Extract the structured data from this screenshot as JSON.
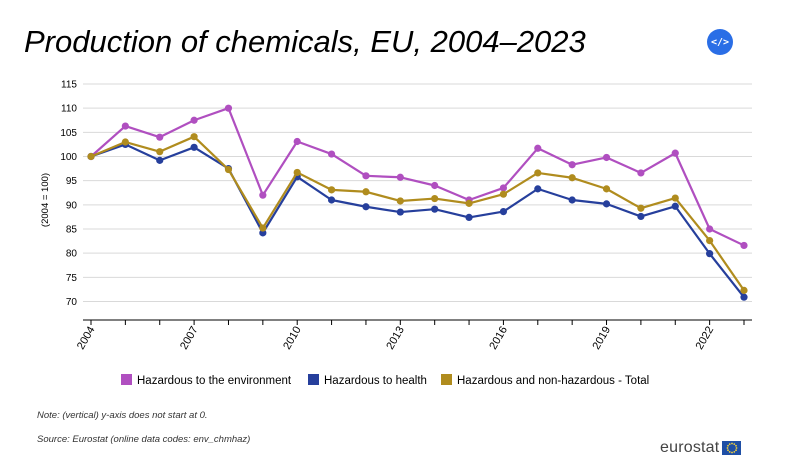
{
  "title": "Production of chemicals, EU, 2004–2023",
  "embed_button_label": "</>",
  "note": "Note: (vertical) y-axis does not start at 0.",
  "source": "Source: Eurostat (online data codes: env_chmhaz)",
  "logo_text": "eurostat",
  "chart_data": {
    "type": "line",
    "title": "Production of chemicals, EU, 2004–2023",
    "ylabel": "(2004 = 100)",
    "xlabel": "",
    "x": [
      2004,
      2005,
      2006,
      2007,
      2008,
      2009,
      2010,
      2011,
      2012,
      2013,
      2014,
      2015,
      2016,
      2017,
      2018,
      2019,
      2020,
      2021,
      2022,
      2023
    ],
    "x_tick_labels": [
      "2004",
      "2007",
      "2010",
      "2013",
      "2016",
      "2019",
      "2022"
    ],
    "ylim": [
      67,
      115
    ],
    "y_ticks": [
      70,
      75,
      80,
      85,
      90,
      95,
      100,
      105,
      110,
      115
    ],
    "grid": true,
    "legend_position": "bottom",
    "series": [
      {
        "name": "Hazardous to the environment",
        "color": "#b04fc0",
        "values": [
          100,
          106.3,
          104,
          107.5,
          110,
          92,
          103.1,
          100.5,
          96,
          95.7,
          94,
          91,
          93.5,
          101.7,
          98.3,
          99.8,
          96.6,
          100.7,
          85,
          81.6
        ]
      },
      {
        "name": "Hazardous to health",
        "color": "#263f9c",
        "values": [
          100,
          102.5,
          99.2,
          101.9,
          97.5,
          84.2,
          95.8,
          91,
          89.6,
          88.5,
          89.1,
          87.4,
          88.6,
          93.3,
          91,
          90.2,
          87.6,
          89.7,
          79.9,
          70.9
        ]
      },
      {
        "name": "Hazardous and non-hazardous - Total",
        "color": "#b08c1e",
        "values": [
          100,
          103,
          101,
          104.1,
          97.3,
          85.2,
          96.7,
          93.1,
          92.7,
          90.8,
          91.3,
          90.3,
          92.2,
          96.6,
          95.6,
          93.3,
          89.3,
          91.4,
          82.6,
          72.3
        ]
      }
    ]
  }
}
